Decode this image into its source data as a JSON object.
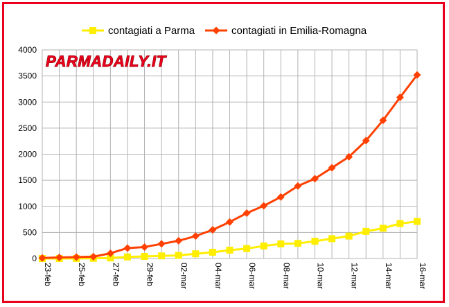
{
  "watermark": "PARMADAILY.IT",
  "chart_data": {
    "type": "line",
    "title": "",
    "xlabel": "",
    "ylabel": "",
    "ylim": [
      0,
      4000
    ],
    "yticks": [
      0,
      500,
      1000,
      1500,
      2000,
      2500,
      3000,
      3500,
      4000
    ],
    "grid": true,
    "legend_position": "top",
    "categories": [
      "23-feb",
      "24-feb",
      "25-feb",
      "26-feb",
      "27-feb",
      "28-feb",
      "29-feb",
      "01-mar",
      "02-mar",
      "03-mar",
      "04-mar",
      "05-mar",
      "06-mar",
      "07-mar",
      "08-mar",
      "09-mar",
      "10-mar",
      "11-mar",
      "12-mar",
      "13-mar",
      "14-mar",
      "15-mar",
      "16-mar"
    ],
    "tick_labels": [
      "23-feb",
      "25-feb",
      "27-feb",
      "29-feb",
      "02-mar",
      "04-mar",
      "06-mar",
      "08-mar",
      "10-mar",
      "12-mar",
      "14-mar",
      "16-mar"
    ],
    "series": [
      {
        "name": "contagiati a Parma",
        "color": "#ffee00",
        "marker": "square",
        "values": [
          0,
          0,
          1,
          4,
          10,
          30,
          40,
          50,
          60,
          90,
          120,
          160,
          190,
          240,
          280,
          290,
          330,
          380,
          430,
          520,
          580,
          670,
          710
        ]
      },
      {
        "name": "contagiati in Emilia-Romagna",
        "color": "#ff4000",
        "marker": "diamond",
        "values": [
          10,
          20,
          26,
          35,
          100,
          200,
          220,
          280,
          340,
          430,
          550,
          700,
          870,
          1010,
          1180,
          1390,
          1530,
          1740,
          1950,
          2260,
          2650,
          3090,
          3520
        ]
      }
    ]
  }
}
